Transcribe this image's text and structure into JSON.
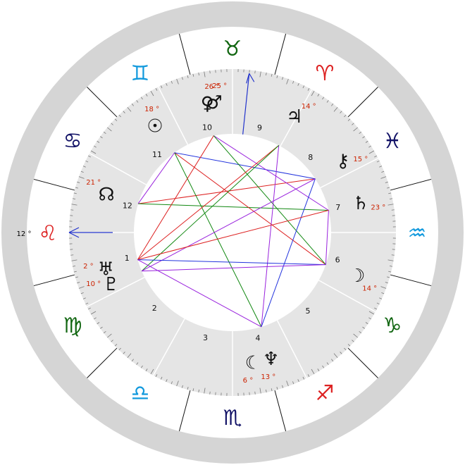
{
  "colors": {
    "outer_ring": "#d5d5d5",
    "house_ring": "#e5e5e5",
    "sign_ring_bg": "#ffffff",
    "line": "#111111",
    "degree_text": "#cc2200",
    "fire": "#dd2222",
    "earth": "#116611",
    "air": "#1199dd",
    "water": "#111166",
    "axis_arrow": "#2233cc",
    "aspect_red": "#dd2222",
    "aspect_green": "#118811",
    "aspect_blue": "#2233dd",
    "aspect_purple": "#9922dd"
  },
  "ascendant_label": "12 °",
  "signs": [
    {
      "glyph": "♉",
      "name": "taurus",
      "element": "earth"
    },
    {
      "glyph": "♈",
      "name": "aries",
      "element": "fire"
    },
    {
      "glyph": "♓",
      "name": "pisces",
      "element": "water"
    },
    {
      "glyph": "♒",
      "name": "aquarius",
      "element": "air"
    },
    {
      "glyph": "♑",
      "name": "capricorn",
      "element": "earth"
    },
    {
      "glyph": "♐",
      "name": "sagittarius",
      "element": "fire"
    },
    {
      "glyph": "♏",
      "name": "scorpio",
      "element": "water"
    },
    {
      "glyph": "♎",
      "name": "libra",
      "element": "air"
    },
    {
      "glyph": "♍",
      "name": "virgo",
      "element": "earth"
    },
    {
      "glyph": "♌",
      "name": "leo",
      "element": "fire"
    },
    {
      "glyph": "♋",
      "name": "cancer",
      "element": "water"
    },
    {
      "glyph": "♊",
      "name": "gemini",
      "element": "air"
    }
  ],
  "houses": [
    "1",
    "2",
    "3",
    "4",
    "5",
    "6",
    "7",
    "8",
    "9",
    "10",
    "11",
    "12"
  ],
  "planets": [
    {
      "name": "venus",
      "glyph": "♀",
      "degree": "26 °",
      "angle": 101
    },
    {
      "name": "mars",
      "glyph": "♂",
      "degree": "25 °",
      "angle": 98
    },
    {
      "name": "jupiter",
      "glyph": "♃",
      "degree": "14 °",
      "angle": 62
    },
    {
      "name": "chiron",
      "glyph": "⚷",
      "degree": "15 °",
      "angle": 33
    },
    {
      "name": "saturn",
      "glyph": "♄",
      "degree": "23 °",
      "angle": 13
    },
    {
      "name": "moon",
      "glyph": "☽",
      "degree": "14 °",
      "angle": -19
    },
    {
      "name": "neptune",
      "glyph": "♆",
      "degree": "13 °",
      "angle": -73
    },
    {
      "name": "lilith",
      "glyph": "☾",
      "degree": "6 °",
      "angle": -81
    },
    {
      "name": "uranus",
      "glyph": "♅",
      "degree": "2 °",
      "angle": 196
    },
    {
      "name": "pluto",
      "glyph": "♇",
      "degree": "10 °",
      "angle": 203
    },
    {
      "name": "node",
      "glyph": "☊",
      "degree": "21 °",
      "angle": 163
    },
    {
      "name": "sun",
      "glyph": "☉",
      "degree": "18 °",
      "angle": 126
    }
  ],
  "aspect_points": [
    "sun",
    "jupiter",
    "chiron",
    "saturn",
    "moon",
    "neptune",
    "uranus",
    "pluto",
    "node",
    "venus"
  ],
  "aspects": [
    {
      "from": "node",
      "to": "chiron",
      "color": "aspect_red"
    },
    {
      "from": "node",
      "to": "saturn",
      "color": "aspect_green"
    },
    {
      "from": "sun",
      "to": "moon",
      "color": "aspect_red"
    },
    {
      "from": "sun",
      "to": "chiron",
      "color": "aspect_blue"
    },
    {
      "from": "sun",
      "to": "neptune",
      "color": "aspect_green"
    },
    {
      "from": "venus",
      "to": "saturn",
      "color": "aspect_purple"
    },
    {
      "from": "venus",
      "to": "uranus",
      "color": "aspect_red"
    },
    {
      "from": "venus",
      "to": "moon",
      "color": "aspect_green"
    },
    {
      "from": "jupiter",
      "to": "uranus",
      "color": "aspect_red"
    },
    {
      "from": "jupiter",
      "to": "neptune",
      "color": "aspect_purple"
    },
    {
      "from": "jupiter",
      "to": "pluto",
      "color": "aspect_green"
    },
    {
      "from": "chiron",
      "to": "neptune",
      "color": "aspect_blue"
    },
    {
      "from": "chiron",
      "to": "pluto",
      "color": "aspect_purple"
    },
    {
      "from": "saturn",
      "to": "moon",
      "color": "aspect_purple"
    },
    {
      "from": "saturn",
      "to": "uranus",
      "color": "aspect_red"
    },
    {
      "from": "moon",
      "to": "uranus",
      "color": "aspect_blue"
    },
    {
      "from": "moon",
      "to": "pluto",
      "color": "aspect_purple"
    },
    {
      "from": "neptune",
      "to": "uranus",
      "color": "aspect_purple"
    },
    {
      "from": "sun",
      "to": "node",
      "color": "aspect_purple"
    }
  ]
}
